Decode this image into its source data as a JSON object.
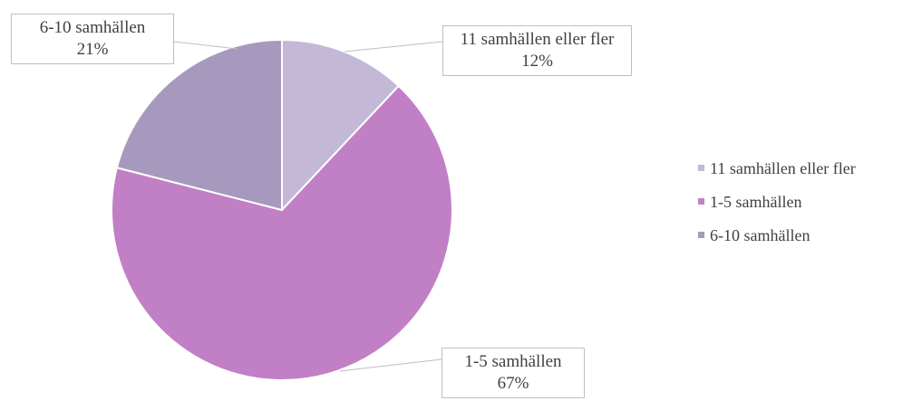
{
  "chart_data": {
    "type": "pie",
    "categories": [
      "11 samhällen eller fler",
      "1-5 samhällen",
      "6-10 samhällen"
    ],
    "values": [
      12,
      67,
      21
    ],
    "value_labels": [
      "12%",
      "67%",
      "21%"
    ],
    "colors": [
      "#c3b9d6",
      "#c17fc5",
      "#a799bd"
    ],
    "legend": "right"
  }
}
